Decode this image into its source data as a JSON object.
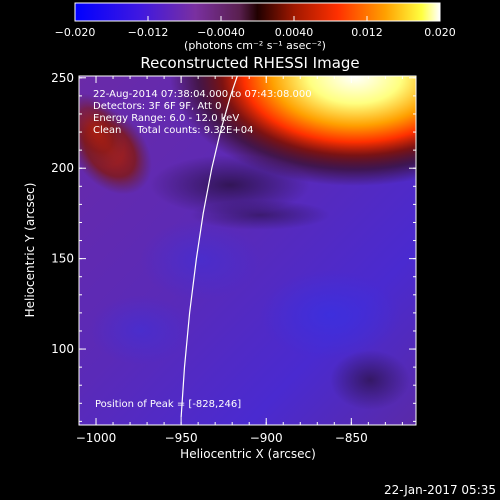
{
  "chart_data": {
    "type": "heatmap",
    "title": "Reconstructed RHESSI Image",
    "xlabel": "Heliocentric X (arcsec)",
    "ylabel": "Heliocentric Y (arcsec)",
    "xlim": [
      -1010,
      -812
    ],
    "ylim": [
      58,
      251
    ],
    "x_ticks": [
      -1000,
      -950,
      -900,
      -850
    ],
    "x_tick_labels": [
      "−1000",
      "−950",
      "−900",
      "−850"
    ],
    "y_ticks": [
      100,
      150,
      200,
      250
    ],
    "y_tick_labels": [
      "100",
      "150",
      "200",
      "250"
    ],
    "colorbar": {
      "range": [
        -0.02,
        0.02
      ],
      "ticks": [
        -0.02,
        -0.012,
        -0.004,
        0.004,
        0.012,
        0.02
      ],
      "tick_labels": [
        "−0.020",
        "−0.012",
        "−0.0040",
        "0.0040",
        "0.012",
        "0.020"
      ],
      "units": "(photons cm⁻² s⁻¹ asec⁻²)"
    },
    "limb_curve": {
      "x": [
        -950,
        -948,
        -945,
        -941,
        -937,
        -932,
        -927,
        -921,
        -917
      ],
      "y": [
        62,
        90,
        120,
        150,
        175,
        200,
        220,
        240,
        251
      ]
    },
    "annotations": {
      "line1": "22-Aug-2014 07:38:04.000 to 07:43:08.000",
      "line2": "Detectors: 3F 6F 9F, Att 0",
      "line3": "Energy Range: 6.0 - 12.0 keV",
      "line4": "Clean     Total counts: 9.32E+04",
      "peak": "Position of Peak = [-828,246]"
    }
  },
  "footer": {
    "timestamp": "22-Jan-2017 05:35"
  },
  "colors": {
    "background": "#000000",
    "colormap": [
      "#0000ff",
      "#4020d0",
      "#6a30b0",
      "#783080",
      "#5a1810",
      "#b02000",
      "#ff4000",
      "#ffa000",
      "#ffffff"
    ]
  }
}
